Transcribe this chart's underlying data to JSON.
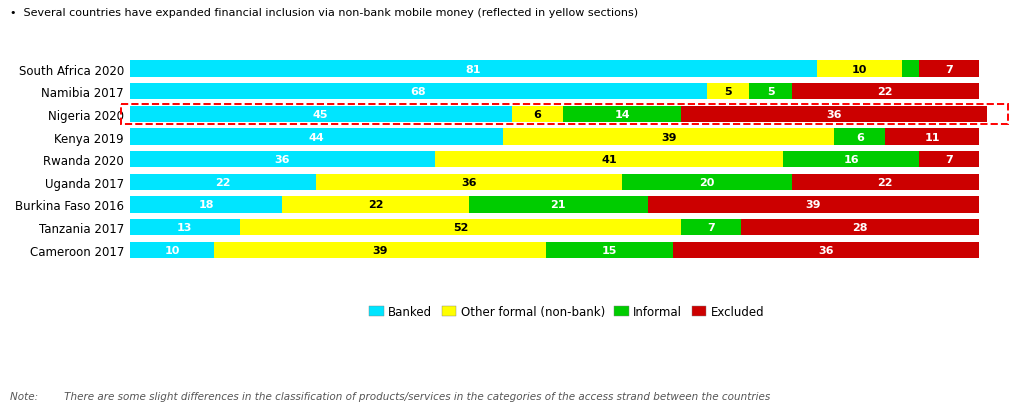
{
  "categories": [
    "South Africa 2020",
    "Namibia 2017",
    "Nigeria 2020",
    "Kenya 2019",
    "Rwanda 2020",
    "Uganda 2017",
    "Burkina Faso 2016",
    "Tanzania 2017",
    "Cameroon 2017"
  ],
  "banked": [
    81,
    68,
    45,
    44,
    36,
    22,
    18,
    13,
    10
  ],
  "other_formal": [
    10,
    5,
    6,
    39,
    41,
    36,
    22,
    52,
    39
  ],
  "informal": [
    2,
    5,
    14,
    6,
    16,
    20,
    21,
    7,
    15
  ],
  "excluded": [
    7,
    22,
    36,
    11,
    7,
    22,
    39,
    28,
    36
  ],
  "color_banked": "#00E5FF",
  "color_other": "#FFFF00",
  "color_informal": "#00CC00",
  "color_excluded": "#CC0000",
  "nigeria_index": 2,
  "subtitle": "Several countries have expanded financial inclusion via non-bank mobile money (reflected in yellow sections)",
  "note": "Note:        There are some slight differences in the classification of products/services in the categories of the access strand between the countries",
  "legend_labels": [
    "Banked",
    "Other formal (non-bank)",
    "Informal",
    "Excluded"
  ],
  "bg_color": "#FFFFFF",
  "bar_height": 0.72,
  "text_color_on_yellow": "#000000",
  "text_color_default": "#FFFFFF",
  "fontsize_bar": 8.0,
  "fontsize_ytick": 8.5,
  "fontsize_legend": 8.5,
  "fontsize_subtitle": 8.0,
  "fontsize_note": 7.5
}
